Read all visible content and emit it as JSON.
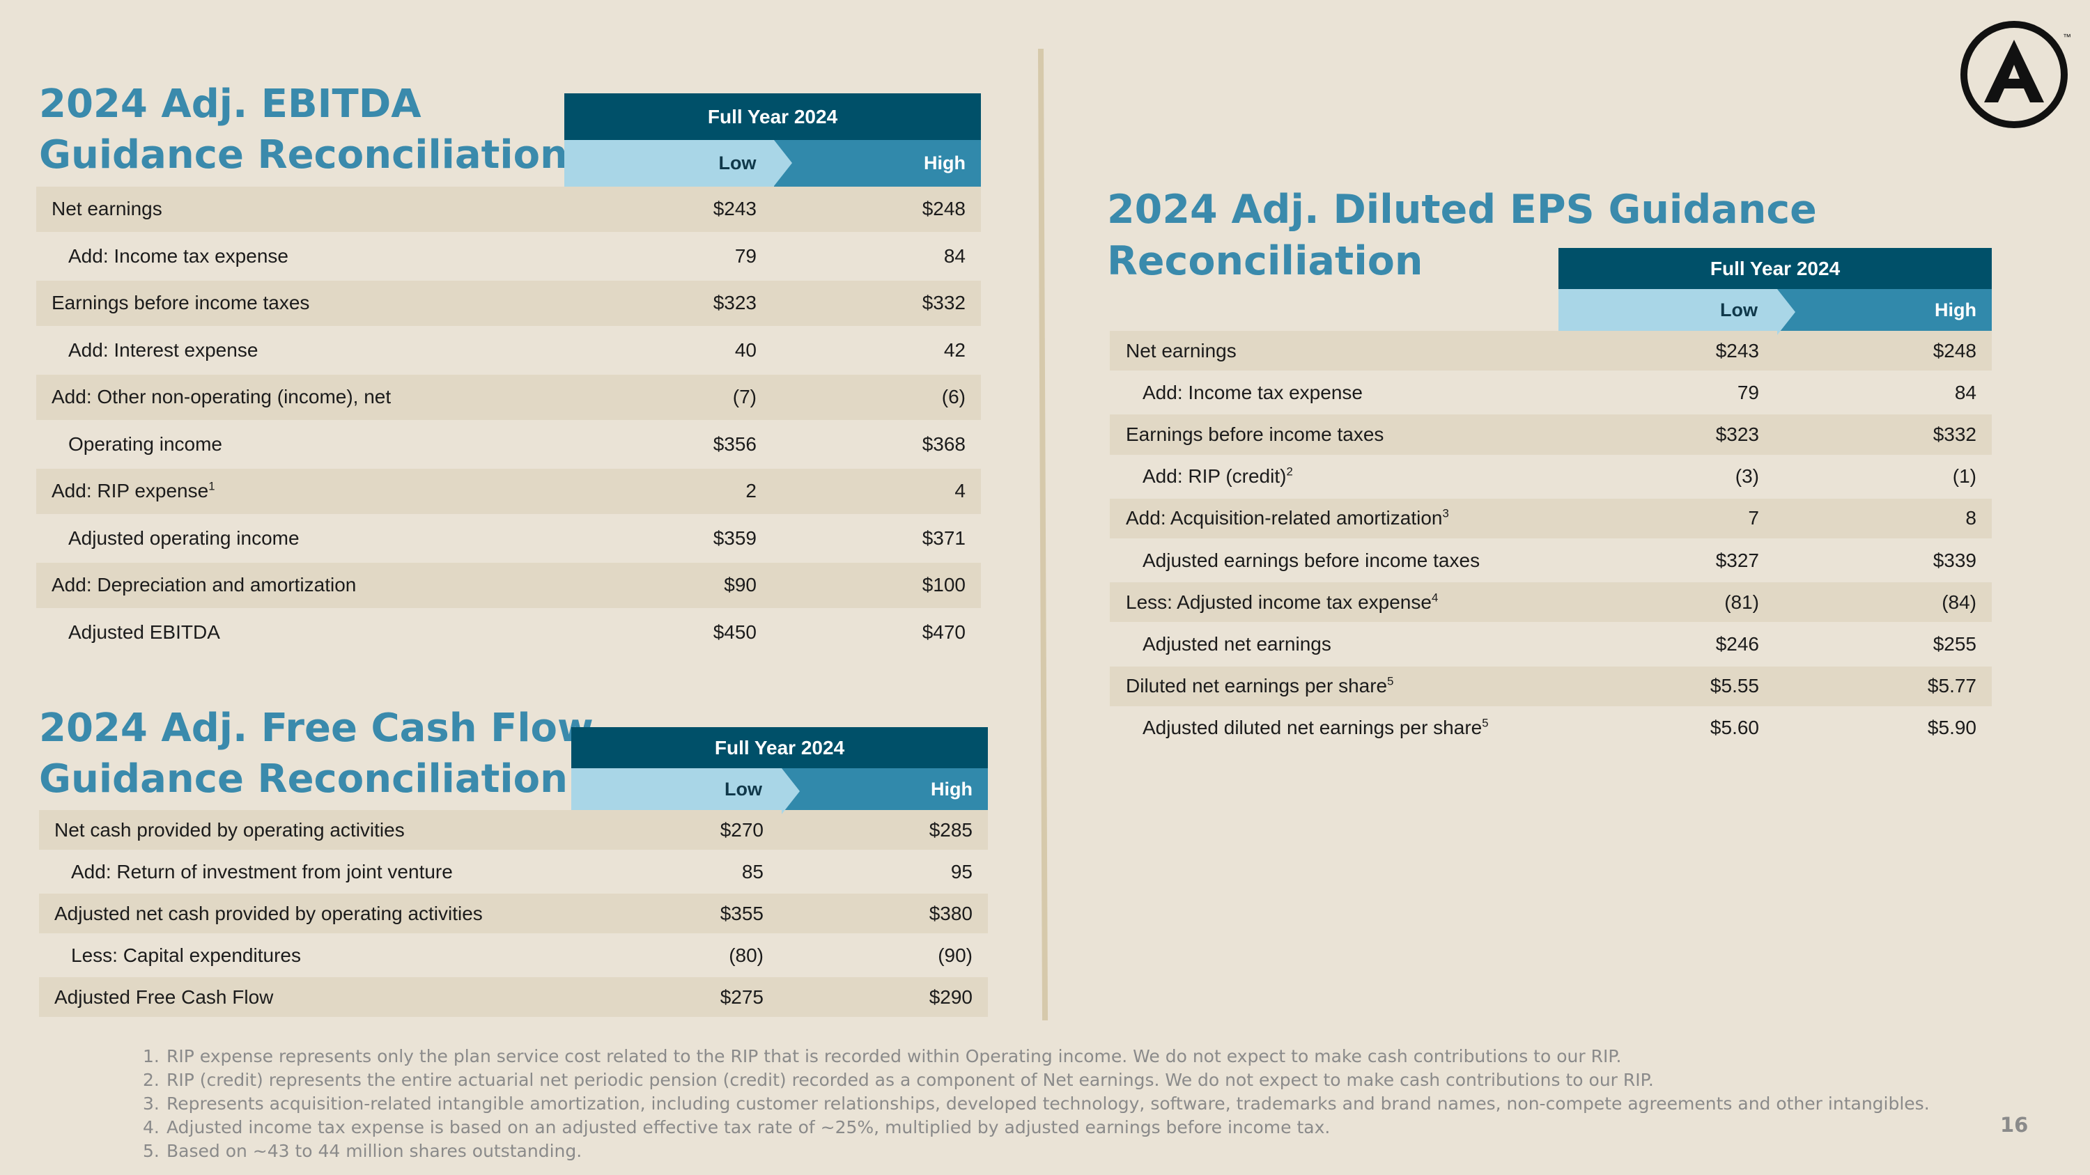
{
  "ebitda": {
    "title_line1": "2024 Adj. EBITDA",
    "title_line2": "Guidance Reconciliation",
    "header_full": "Full Year 2024",
    "header_low": "Low",
    "header_high": "High",
    "rows": [
      {
        "label": "Net earnings",
        "sup": "",
        "low": "$243",
        "high": "$248"
      },
      {
        "label": "Add: Income tax expense",
        "sup": "",
        "low": "79",
        "high": "84"
      },
      {
        "label": "Earnings before income taxes",
        "sup": "",
        "low": "$323",
        "high": "$332"
      },
      {
        "label": "Add: Interest expense",
        "sup": "",
        "low": "40",
        "high": "42"
      },
      {
        "label": "Add: Other non-operating (income), net",
        "sup": "",
        "low": "(7)",
        "high": "(6)"
      },
      {
        "label": "Operating income",
        "sup": "",
        "low": "$356",
        "high": "$368"
      },
      {
        "label": "Add: RIP expense",
        "sup": "1",
        "low": "2",
        "high": "4"
      },
      {
        "label": "Adjusted operating income",
        "sup": "",
        "low": "$359",
        "high": "$371"
      },
      {
        "label": "Add: Depreciation and amortization",
        "sup": "",
        "low": "$90",
        "high": "$100"
      },
      {
        "label": "Adjusted EBITDA",
        "sup": "",
        "low": "$450",
        "high": "$470"
      }
    ]
  },
  "fcf": {
    "title_line1": "2024 Adj. Free Cash Flow",
    "title_line2": "Guidance Reconciliation",
    "header_full": "Full Year 2024",
    "header_low": "Low",
    "header_high": "High",
    "rows": [
      {
        "label": "Net cash provided by operating activities",
        "sup": "",
        "low": "$270",
        "high": "$285"
      },
      {
        "label": "Add: Return of investment from joint venture",
        "sup": "",
        "low": "85",
        "high": "95"
      },
      {
        "label": "Adjusted net cash provided by operating activities",
        "sup": "",
        "low": "$355",
        "high": "$380"
      },
      {
        "label": "Less: Capital expenditures",
        "sup": "",
        "low": "(80)",
        "high": "(90)"
      },
      {
        "label": "Adjusted Free Cash Flow",
        "sup": "",
        "low": "$275",
        "high": "$290"
      }
    ]
  },
  "eps": {
    "title": "2024 Adj. Diluted EPS Guidance Reconciliation",
    "header_full": "Full Year 2024",
    "header_low": "Low",
    "header_high": "High",
    "rows": [
      {
        "label": "Net earnings",
        "sup": "",
        "low": "$243",
        "high": "$248"
      },
      {
        "label": "Add: Income tax expense",
        "sup": "",
        "low": "79",
        "high": "84"
      },
      {
        "label": "Earnings before income taxes",
        "sup": "",
        "low": "$323",
        "high": "$332"
      },
      {
        "label": "Add: RIP (credit)",
        "sup": "2",
        "low": "(3)",
        "high": "(1)"
      },
      {
        "label": "Add: Acquisition-related amortization",
        "sup": "3",
        "low": "7",
        "high": "8"
      },
      {
        "label": "Adjusted earnings before income taxes",
        "sup": "",
        "low": "$327",
        "high": "$339"
      },
      {
        "label": "Less: Adjusted income tax expense",
        "sup": "4",
        "low": "(81)",
        "high": "(84)"
      },
      {
        "label": "Adjusted net earnings",
        "sup": "",
        "low": "$246",
        "high": "$255"
      },
      {
        "label": "Diluted net earnings per share",
        "sup": "5",
        "low": "$5.55",
        "high": "$5.77"
      },
      {
        "label": "Adjusted diluted net earnings per share",
        "sup": "5",
        "low": "$5.60",
        "high": "$5.90"
      }
    ]
  },
  "footnotes": [
    {
      "num": "1.",
      "text": "RIP expense represents only the plan service cost related to the RIP that is recorded within Operating income. We do not expect to make cash contributions to our RIP."
    },
    {
      "num": "2.",
      "text": "RIP (credit) represents the entire actuarial net periodic pension (credit) recorded as a component of Net earnings. We do not expect to make cash contributions to our RIP."
    },
    {
      "num": "3.",
      "text": "Represents acquisition-related intangible amortization, including customer relationships, developed technology, software, trademarks and brand names, non-compete agreements  and other intangibles."
    },
    {
      "num": "4.",
      "text": "Adjusted income tax expense is based on an adjusted effective tax rate of ~25%, multiplied by adjusted earnings before income tax."
    },
    {
      "num": "5.",
      "text": "Based on ~43 to 44 million shares outstanding."
    }
  ],
  "page_number": "16",
  "logo": {
    "icon": "a-circle-logo-icon",
    "trademark": "™"
  },
  "colors": {
    "background": "#eae3d6",
    "title": "#3a8aac",
    "header_dark": "#005069",
    "header_low": "#a9d6e7",
    "header_high": "#3189ab",
    "row_shade": "#e1d8c5",
    "divider": "#d6c9ab"
  }
}
